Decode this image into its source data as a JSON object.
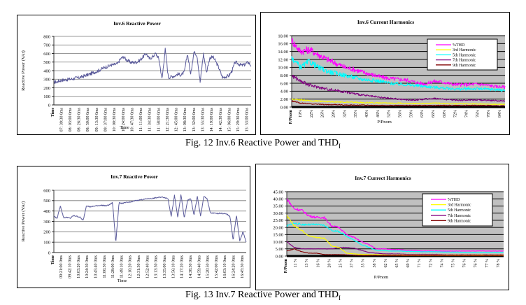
{
  "figures": [
    {
      "number": "Fig. 12",
      "caption_main": "Inv.6 Reactive Power and THD",
      "caption_sub": "I"
    },
    {
      "number": "Fig. 13",
      "caption_main": "Inv.7 Reactive Power and THD",
      "caption_sub": "I"
    }
  ],
  "captions": {
    "fig12": "Fig. 12 Inv.6 Reactive Power and THD",
    "fig13": "Fig. 13 Inv.7 Reactive Power and THD",
    "subscript": "I"
  },
  "chart_data": [
    {
      "id": "inv6-power",
      "type": "line",
      "title": "Inv.6 Reactive Power",
      "xlabel": "Time",
      "ylabel": "Reactive Power (VAr)",
      "ylim": [
        0,
        800
      ],
      "yticks": [
        0,
        100,
        200,
        300,
        400,
        500,
        600,
        700,
        800
      ],
      "grid": true,
      "line_color": "#5b5b9b",
      "xtick_labels": [
        "Time",
        "07: 39:30 0ms",
        "08: 03:00 0ms",
        "08: 26:30 0ms",
        "08: 50:00 0ms",
        "09: 13:30 0ms",
        "09: 37:00 0ms",
        "10: 00:30 0ms",
        "10: 24:00 0ms",
        "10: 47:30 0ms",
        "11: 11:00 0ms",
        "11: 34:30 0ms",
        "11: 58:00 0ms",
        "12: 21:30 0ms",
        "12: 45:00 0ms",
        "13: 08:30 0ms",
        "13: 32:00 0ms",
        "13: 55:30 0ms",
        "14: 19:00 0ms",
        "14: 42:30 0ms",
        "15: 06:00 0ms",
        "15: 29:30 0ms",
        "15: 53:00 0ms"
      ],
      "series": [
        {
          "name": "Reactive Power",
          "values": [
            265,
            270,
            285,
            290,
            295,
            300,
            305,
            315,
            320,
            330,
            345,
            355,
            370,
            385,
            400,
            420,
            440,
            450,
            465,
            470,
            480,
            540,
            560,
            520,
            500,
            495,
            500,
            520,
            560,
            600,
            540,
            560,
            600,
            540,
            300,
            650,
            320,
            330,
            340,
            360,
            350,
            380,
            600,
            350,
            620,
            580,
            260,
            600,
            380,
            550,
            560,
            500,
            420,
            320,
            330,
            340,
            400,
            500,
            480,
            460,
            470,
            500,
            460
          ]
        }
      ]
    },
    {
      "id": "inv6-harmonics",
      "type": "line",
      "title": "Inv.6 Current Harmonics",
      "xlabel": "P/Pnom",
      "ylabel": "",
      "ylim": [
        0,
        18
      ],
      "yticks": [
        "0.00",
        "2.00",
        "4.00",
        "6.00",
        "8.00",
        "10.00",
        "12.00",
        "14.00",
        "16.00",
        "18.00"
      ],
      "grid": true,
      "legend_position": "top-right",
      "xtick_labels": [
        "P/Pnom",
        "19%",
        "22%",
        "26%",
        "29%",
        "32%",
        "35%",
        "40%",
        "46%",
        "52%",
        "56%",
        "59%",
        "63%",
        "66%",
        "69%",
        "72%",
        "74%",
        "76%",
        "78%",
        "84%"
      ],
      "series": [
        {
          "name": "%THD",
          "color": "#ff00ff",
          "values": [
            16.8,
            14.0,
            14.5,
            13.2,
            12.0,
            11.0,
            10.0,
            9.5,
            8.8,
            8.2,
            7.6,
            7.2,
            7.0,
            6.8,
            6.2,
            5.8,
            6.5,
            6.3,
            5.8,
            5.6,
            5.7,
            5.8,
            5.5,
            5.2,
            5.0
          ]
        },
        {
          "name": "3rd Harmonic",
          "color": "#ffff00",
          "values": [
            2.0,
            1.8,
            1.6,
            1.5,
            1.4,
            1.3,
            1.2,
            1.2,
            1.1,
            1.1,
            1.0,
            1.0,
            1.0,
            0.9,
            0.9,
            0.9,
            1.0,
            0.9,
            0.8,
            0.8,
            0.8,
            0.8,
            0.7,
            0.7,
            0.7
          ]
        },
        {
          "name": "5th Harmonic",
          "color": "#00ffff",
          "values": [
            12.5,
            10.0,
            11.5,
            10.0,
            9.0,
            8.5,
            8.0,
            7.5,
            7.0,
            6.8,
            6.5,
            6.0,
            5.8,
            5.6,
            5.4,
            5.2,
            5.0,
            4.8,
            4.6,
            4.5,
            4.6,
            4.6,
            4.5,
            4.4,
            4.2
          ]
        },
        {
          "name": "7th Harmonic",
          "color": "#800080",
          "values": [
            8.0,
            6.5,
            5.5,
            5.0,
            4.5,
            4.2,
            3.8,
            3.4,
            3.0,
            2.7,
            2.4,
            2.2,
            2.0,
            1.8,
            1.8,
            2.0,
            2.2,
            2.0,
            1.8,
            1.7,
            1.8,
            1.8,
            1.7,
            1.6,
            1.5
          ]
        },
        {
          "name": "9th Harmonic",
          "color": "#800000",
          "values": [
            1.5,
            1.0,
            0.8,
            0.7,
            0.6,
            0.6,
            0.5,
            0.5,
            0.5,
            0.4,
            0.4,
            0.4,
            0.4,
            0.4,
            0.4,
            0.4,
            0.4,
            0.4,
            0.4,
            0.4,
            0.4,
            0.4,
            0.4,
            0.3,
            0.3
          ]
        }
      ]
    },
    {
      "id": "inv7-power",
      "type": "line",
      "title": "Inv.7 Reactive Power",
      "xlabel": "Time",
      "ylabel": "Reactive Power (VAr)",
      "ylim": [
        0,
        600
      ],
      "yticks": [
        0,
        100,
        200,
        300,
        400,
        500,
        600
      ],
      "grid": true,
      "line_color": "#5b5b9b",
      "xtick_labels": [
        "Time",
        "09:21:00 0ms",
        "09:42:10 0ms",
        "10:03:20 0ms",
        "10:24:30 0ms",
        "10:45:40 0ms",
        "11:06:50 0ms",
        "11:28:00 0ms",
        "11:49:10 0ms",
        "12:10:20 0ms",
        "12:31:30 0ms",
        "12:52:40 0ms",
        "13:13:50 0ms",
        "13:35:00 0ms",
        "13:56:10 0ms",
        "14:17:20 0ms",
        "14:38:30 0ms",
        "14:59:40 0ms",
        "15:20:50 0ms",
        "15:42:00 0ms",
        "16:03:10 0ms",
        "16:24:20 0ms",
        "16:45:30 0ms"
      ],
      "series": [
        {
          "name": "Reactive Power",
          "values": [
            350,
            330,
            450,
            335,
            340,
            330,
            355,
            350,
            340,
            310,
            455,
            440,
            445,
            450,
            455,
            455,
            450,
            460,
            480,
            100,
            480,
            475,
            480,
            485,
            490,
            500,
            505,
            510,
            515,
            520,
            520,
            525,
            530,
            535,
            530,
            520,
            350,
            550,
            340,
            560,
            330,
            500,
            520,
            360,
            540,
            350,
            540,
            520,
            380,
            380,
            375,
            380,
            375,
            370,
            350,
            120,
            360,
            110,
            200,
            100
          ]
        }
      ]
    },
    {
      "id": "inv7-harmonics",
      "type": "line",
      "title": "Inv.7 Currect Harmonics",
      "xlabel": "P/Pnom",
      "ylabel": "",
      "ylim": [
        0,
        45
      ],
      "yticks": [
        "0.00",
        "5.00",
        "10.00",
        "15.00",
        "20.00",
        "25.00",
        "30.00",
        "35.00",
        "40.00",
        "45.00"
      ],
      "grid": true,
      "legend_position": "top-right",
      "xtick_labels": [
        "P/Pnom",
        "11 %",
        "13 %",
        "16 %",
        "20 %",
        "25 %",
        "37 %",
        "55 %",
        "58 %",
        "62 %",
        "65 %",
        "69 %",
        "71 %",
        "72 %",
        "74 %",
        "75 %",
        "76 %",
        "76 %",
        "77 %",
        "78 %"
      ],
      "series": [
        {
          "name": "%THD",
          "color": "#ff00ff",
          "values": [
            40.0,
            33.0,
            32.0,
            28.0,
            27.0,
            27.0,
            21.0,
            20.0,
            15.0,
            13.0,
            10.0,
            8.0,
            5.0,
            5.0,
            4.5,
            4.5,
            4.0,
            4.0,
            3.5,
            3.5,
            3.5,
            3.5,
            3.5,
            3.5,
            3.5,
            3.5,
            3.5,
            3.5,
            3.5,
            3.5
          ]
        },
        {
          "name": "3rd Harmonic",
          "color": "#ffff00",
          "values": [
            28.0,
            21.0,
            18.0,
            14.0,
            13.0,
            12.5,
            7.0,
            6.0,
            2.0,
            1.5,
            1.2,
            1.0,
            1.0,
            0.8,
            0.8,
            0.8,
            0.7,
            0.7,
            0.7,
            0.7,
            0.7,
            0.7,
            0.7,
            0.7,
            0.7,
            0.7,
            0.7,
            0.7,
            0.7,
            0.7
          ]
        },
        {
          "name": "5th Harmonic",
          "color": "#00ffff",
          "values": [
            21.0,
            23.0,
            22.0,
            22.0,
            22.0,
            21.5,
            18.0,
            17.0,
            14.0,
            11.0,
            8.0,
            6.0,
            4.0,
            3.8,
            3.5,
            3.5,
            3.3,
            3.2,
            3.0,
            3.0,
            3.0,
            2.8,
            2.8,
            2.7,
            2.6,
            2.5,
            2.5,
            2.5,
            2.5,
            2.5
          ]
        },
        {
          "name": "7th Harmonic",
          "color": "#800080",
          "values": [
            10.0,
            6.0,
            5.0,
            5.0,
            5.0,
            5.0,
            5.0,
            6.0,
            6.0,
            5.5,
            4.0,
            2.5,
            2.0,
            1.5,
            1.5,
            1.5,
            1.2,
            1.2,
            1.2,
            1.2,
            1.2,
            1.0,
            1.0,
            1.0,
            1.0,
            1.0,
            1.0,
            1.0,
            1.0,
            1.0
          ]
        },
        {
          "name": "9th Harmonic",
          "color": "#800000",
          "values": [
            3.5,
            5.0,
            3.0,
            2.0,
            2.0,
            1.0,
            1.0,
            1.0,
            0.8,
            0.6,
            0.5,
            0.5,
            0.5,
            0.4,
            0.4,
            0.4,
            0.3,
            0.3,
            0.3,
            0.3,
            0.3,
            0.3,
            0.3,
            0.3,
            0.3,
            0.3,
            0.3,
            0.3,
            0.3,
            0.3
          ]
        }
      ]
    }
  ]
}
